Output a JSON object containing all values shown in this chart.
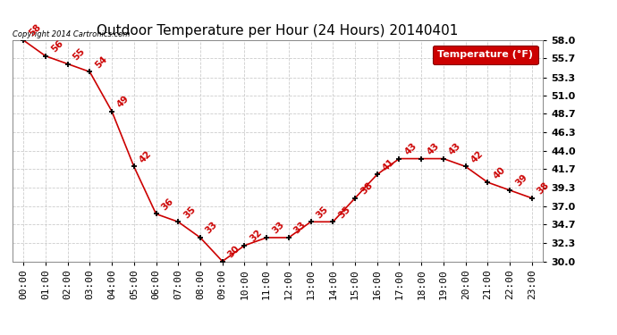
{
  "title": "Outdoor Temperature per Hour (24 Hours) 20140401",
  "copyright": "Copyright 2014 Cartronics.com",
  "legend_label": "Temperature (°F)",
  "hours": [
    "00:00",
    "01:00",
    "02:00",
    "03:00",
    "04:00",
    "05:00",
    "06:00",
    "07:00",
    "08:00",
    "09:00",
    "10:00",
    "11:00",
    "12:00",
    "13:00",
    "14:00",
    "15:00",
    "16:00",
    "17:00",
    "18:00",
    "19:00",
    "20:00",
    "21:00",
    "22:00",
    "23:00"
  ],
  "temperatures": [
    58,
    56,
    55,
    54,
    49,
    42,
    36,
    35,
    33,
    30,
    32,
    33,
    33,
    35,
    35,
    38,
    41,
    43,
    43,
    43,
    42,
    40,
    39,
    38
  ],
  "ylim_min": 30.0,
  "ylim_max": 58.0,
  "yticks": [
    30.0,
    32.3,
    34.7,
    37.0,
    39.3,
    41.7,
    44.0,
    46.3,
    48.7,
    51.0,
    53.3,
    55.7,
    58.0
  ],
  "ytick_labels": [
    "30.0",
    "32.3",
    "34.7",
    "37.0",
    "39.3",
    "41.7",
    "44.0",
    "46.3",
    "48.7",
    "51.0",
    "53.3",
    "55.7",
    "58.0"
  ],
  "line_color": "#cc0000",
  "marker_color": "#000000",
  "label_color": "#cc0000",
  "background_color": "#ffffff",
  "grid_color": "#cccccc",
  "legend_bg": "#cc0000",
  "legend_text_color": "#ffffff",
  "title_fontsize": 11,
  "tick_fontsize": 8,
  "label_fontsize": 7.5
}
